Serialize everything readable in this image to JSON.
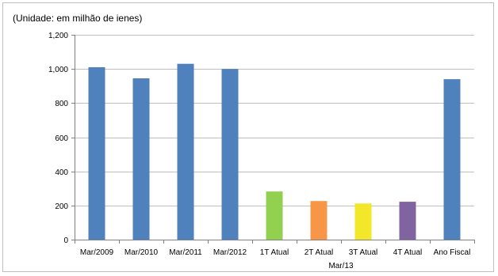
{
  "chart_data": {
    "type": "bar",
    "unit_label": "(Unidade: em milhão de ienes)",
    "categories": [
      "Mar/2009",
      "Mar/2010",
      "Mar/2011",
      "Mar/2012",
      "1T Atual",
      "2T Atual",
      "3T Atual",
      "4T Atual",
      "Ano Fiscal"
    ],
    "group_label": "Mar/13",
    "values": [
      1010,
      945,
      1030,
      1000,
      282,
      226,
      212,
      222,
      940
    ],
    "bar_colors": [
      "#4f81bd",
      "#4f81bd",
      "#4f81bd",
      "#4f81bd",
      "#92d050",
      "#f79646",
      "#f2e829",
      "#8064a2",
      "#4f81bd"
    ],
    "ylim": [
      0,
      1200
    ],
    "yticks": [
      0,
      200,
      400,
      600,
      800,
      1000,
      1200
    ],
    "ytick_labels": [
      "0",
      "200",
      "400",
      "600",
      "800",
      "1,000",
      "1,200"
    ],
    "grid": true,
    "legend": "none"
  }
}
